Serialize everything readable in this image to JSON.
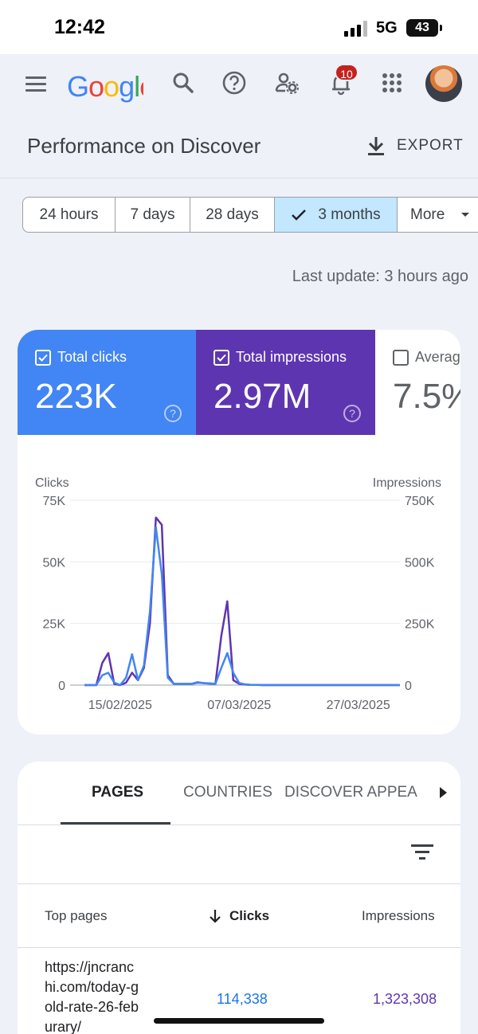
{
  "status_bar": {
    "time": "12:42",
    "network": "5G",
    "battery": "43"
  },
  "app_bar": {
    "logo": "Google",
    "notification_count": "10"
  },
  "header": {
    "title": "Performance on Discover",
    "export_label": "EXPORT"
  },
  "date_range": {
    "options": [
      "24 hours",
      "7 days",
      "28 days",
      "3 months",
      "More"
    ],
    "selected": "3 months"
  },
  "last_update": "Last update: 3 hours ago",
  "metrics": {
    "clicks": {
      "label": "Total clicks",
      "value": "223K",
      "checked": true,
      "color": "#4285f4"
    },
    "impressions": {
      "label": "Total impressions",
      "value": "2.97M",
      "checked": true,
      "color": "#5e35b1"
    },
    "ctr": {
      "label": "Averag",
      "value": "7.5%",
      "checked": false
    }
  },
  "chart_data": {
    "type": "line",
    "left_axis_label": "Clicks",
    "right_axis_label": "Impressions",
    "left_ticks": [
      "75K",
      "50K",
      "25K",
      "0"
    ],
    "right_ticks": [
      "750K",
      "500K",
      "250K",
      "0"
    ],
    "left_ylim": [
      0,
      75000
    ],
    "right_ylim": [
      0,
      750000
    ],
    "x_tick_labels": [
      "15/02/2025",
      "07/03/2025",
      "27/03/2025"
    ],
    "x_tick_index": [
      6,
      26,
      46
    ],
    "grid": true,
    "series": [
      {
        "name": "Total clicks",
        "axis": "left",
        "color": "#4285f4",
        "values": [
          0,
          0,
          0,
          4000,
          5000,
          1000,
          0,
          3000,
          12500,
          2000,
          8000,
          30000,
          64000,
          45000,
          3000,
          500,
          500,
          500,
          500,
          1200,
          800,
          700,
          500,
          7000,
          13000,
          5000,
          800,
          300,
          100,
          50,
          0,
          0,
          0,
          0,
          0,
          0,
          0,
          0,
          0,
          0,
          0,
          0,
          0,
          0,
          0,
          0,
          0,
          0,
          0,
          0,
          0,
          0,
          0,
          0
        ]
      },
      {
        "name": "Total impressions",
        "axis": "right",
        "color": "#5e35b1",
        "values": [
          0,
          0,
          0,
          90000,
          130000,
          5000,
          0,
          10000,
          50000,
          20000,
          70000,
          250000,
          680000,
          650000,
          40000,
          5000,
          5000,
          5000,
          5000,
          10000,
          8000,
          6000,
          5000,
          200000,
          340000,
          20000,
          5000,
          2000,
          1000,
          500,
          0,
          0,
          0,
          0,
          0,
          0,
          0,
          0,
          0,
          0,
          0,
          0,
          0,
          0,
          0,
          0,
          0,
          0,
          0,
          0,
          0,
          0,
          0,
          0
        ]
      }
    ]
  },
  "tabs": {
    "items": [
      "PAGES",
      "COUNTRIES",
      "DISCOVER APPEAR"
    ],
    "active": "PAGES"
  },
  "table": {
    "columns": {
      "page": "Top pages",
      "clicks": "Clicks",
      "impressions": "Impressions"
    },
    "sorted_by": "Clicks",
    "rows": [
      {
        "page": "https://jncranchi.com/today-gold-rate-26-feburary/",
        "clicks": "114,338",
        "impressions": "1,323,308"
      }
    ]
  }
}
